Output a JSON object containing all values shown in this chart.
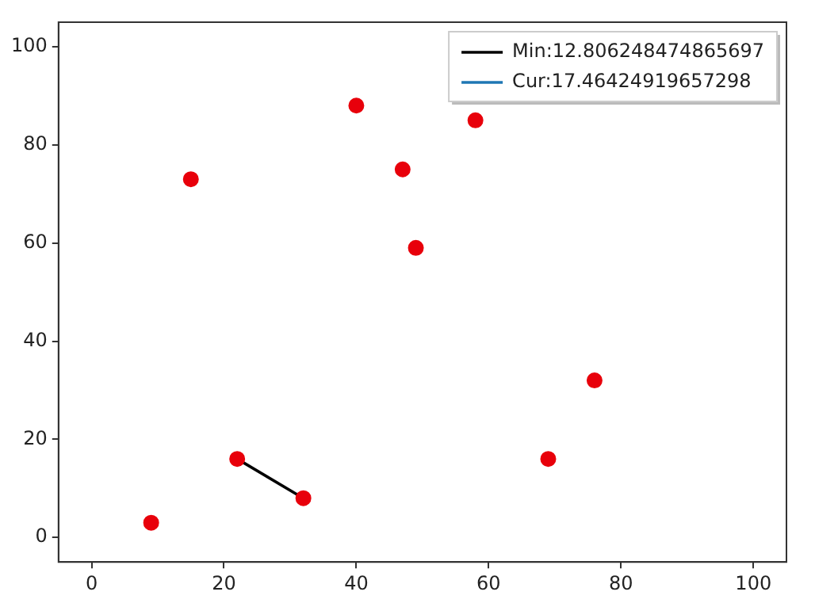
{
  "chart_data": {
    "type": "scatter",
    "series": [
      {
        "color": "#e8000b",
        "marker": "circle",
        "x": [
          9,
          15,
          22,
          32,
          40,
          47,
          49,
          58,
          69,
          76
        ],
        "values": [
          3,
          73,
          16,
          8,
          88,
          75,
          59,
          85,
          16,
          32
        ]
      },
      {
        "type": "line",
        "name": "Min:12.806248474865697",
        "color": "#000000",
        "x": [
          22,
          32
        ],
        "values": [
          16,
          8
        ]
      },
      {
        "type": "line",
        "name": "Cur:17.46424919657298",
        "color": "#1f77b4"
      }
    ],
    "xlim": [
      -5,
      105
    ],
    "ylim": [
      -5,
      105
    ],
    "xticks": [
      0,
      20,
      40,
      60,
      80,
      100
    ],
    "yticks": [
      0,
      20,
      40,
      60,
      80,
      100
    ],
    "legend": "top right"
  }
}
